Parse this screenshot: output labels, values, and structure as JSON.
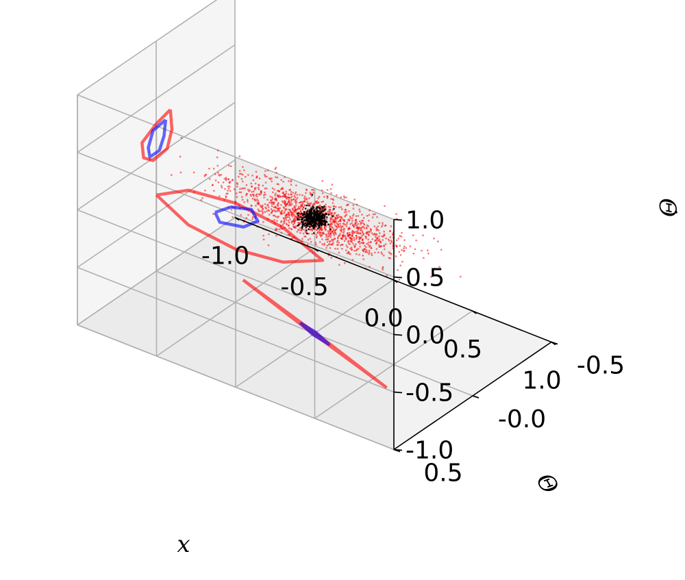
{
  "chart_data": {
    "type": "scatter",
    "projection": "3d",
    "xlabel": "x",
    "ylabel": "Θ",
    "zlabel": "Θ̇",
    "xlim": [
      -1.0,
      1.0
    ],
    "ylim": [
      -0.5,
      0.5
    ],
    "zlim": [
      -1.0,
      1.0
    ],
    "x_ticks": [
      "-1.0",
      "-0.5",
      "0.0",
      "0.5",
      "1.0"
    ],
    "y_ticks": [
      "-0.5",
      "-0.0",
      "0.5"
    ],
    "z_ticks": [
      "-1.0",
      "-0.5",
      "0.0",
      "0.5",
      "1.0"
    ],
    "grid": true,
    "colors": {
      "outer": "#ff0000",
      "inner": "#0000ff",
      "core": "#000000"
    },
    "series": [
      {
        "color": "red",
        "kind": "scatter-cloud",
        "center": [
          0.0,
          0.0,
          0.0
        ],
        "spread": [
          0.55,
          0.12,
          0.15
        ]
      },
      {
        "color": "black",
        "kind": "scatter-cloud",
        "center": [
          0.0,
          0.0,
          0.0
        ],
        "spread": [
          0.06,
          0.05,
          0.07
        ]
      },
      {
        "color": "red",
        "kind": "projection",
        "plane": "xz",
        "path": [
          [
            -0.5,
            0.4
          ],
          [
            -0.3,
            0.55
          ],
          [
            0.0,
            0.6
          ],
          [
            0.3,
            0.55
          ],
          [
            0.55,
            0.4
          ],
          [
            0.3,
            0.25
          ],
          [
            0.0,
            0.2
          ],
          [
            -0.3,
            0.25
          ],
          [
            -0.5,
            0.4
          ]
        ]
      },
      {
        "color": "blue",
        "kind": "projection",
        "plane": "xz",
        "path": [
          [
            -0.13,
            0.45
          ],
          [
            -0.03,
            0.55
          ],
          [
            0.1,
            0.6
          ],
          [
            0.14,
            0.52
          ],
          [
            0.05,
            0.42
          ],
          [
            -0.1,
            0.38
          ],
          [
            -0.13,
            0.45
          ]
        ]
      },
      {
        "color": "red",
        "kind": "projection",
        "plane": "yz",
        "path": [
          [
            -0.09,
            0.32
          ],
          [
            0.0,
            0.28
          ],
          [
            0.09,
            0.2
          ],
          [
            0.08,
            0.06
          ],
          [
            0.02,
            -0.02
          ],
          [
            -0.07,
            0.0
          ],
          [
            -0.1,
            0.14
          ],
          [
            -0.09,
            0.32
          ]
        ]
      },
      {
        "color": "blue",
        "kind": "projection",
        "plane": "yz",
        "path": [
          [
            -0.06,
            0.26
          ],
          [
            0.02,
            0.24
          ],
          [
            0.05,
            0.12
          ],
          [
            0.04,
            0.03
          ],
          [
            -0.02,
            0.03
          ],
          [
            -0.05,
            0.13
          ],
          [
            -0.06,
            0.26
          ]
        ]
      },
      {
        "color": "red",
        "kind": "projection",
        "plane": "xy",
        "path": [
          [
            -0.6,
            -0.15
          ],
          [
            -0.1,
            -0.02
          ],
          [
            0.6,
            0.15
          ],
          [
            0.1,
            0.02
          ],
          [
            -0.6,
            -0.15
          ]
        ]
      },
      {
        "color": "blue",
        "kind": "projection",
        "plane": "xy",
        "path": [
          [
            -0.12,
            -0.03
          ],
          [
            0.0,
            -0.01
          ],
          [
            0.12,
            0.03
          ],
          [
            0.0,
            0.01
          ],
          [
            -0.12,
            -0.03
          ]
        ]
      }
    ]
  }
}
